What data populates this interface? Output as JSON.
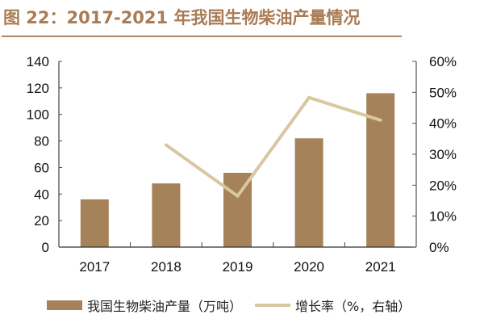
{
  "title": "图 22：2017-2021 年我国生物柴油产量情况",
  "colors": {
    "bar": "#a6825a",
    "line": "#d8c7a0",
    "title": "#a97c55",
    "axis": "#333333"
  },
  "chart_data": {
    "type": "bar+line",
    "title": "图 22：2017-2021 年我国生物柴油产量情况",
    "categories": [
      "2017",
      "2018",
      "2019",
      "2020",
      "2021"
    ],
    "series": [
      {
        "name": "我国生物柴油产量（万吨）",
        "type": "bar",
        "axis": "left",
        "values": [
          36,
          48,
          56,
          82,
          116
        ]
      },
      {
        "name": "增长率（%，右轴）",
        "type": "line",
        "axis": "right",
        "values": [
          null,
          33,
          16.5,
          48.3,
          41
        ]
      }
    ],
    "left_axis": {
      "range": [
        0,
        140
      ],
      "ticks": [
        0,
        20,
        40,
        60,
        80,
        100,
        120,
        140
      ],
      "tick_labels": [
        "0",
        "20",
        "40",
        "60",
        "80",
        "100",
        "120",
        "140"
      ]
    },
    "right_axis": {
      "range": [
        0,
        60
      ],
      "ticks": [
        0,
        10,
        20,
        30,
        40,
        50,
        60
      ],
      "tick_labels": [
        "0%",
        "10%",
        "20%",
        "30%",
        "40%",
        "50%",
        "60%"
      ]
    },
    "grid": false,
    "legend_position": "bottom"
  }
}
